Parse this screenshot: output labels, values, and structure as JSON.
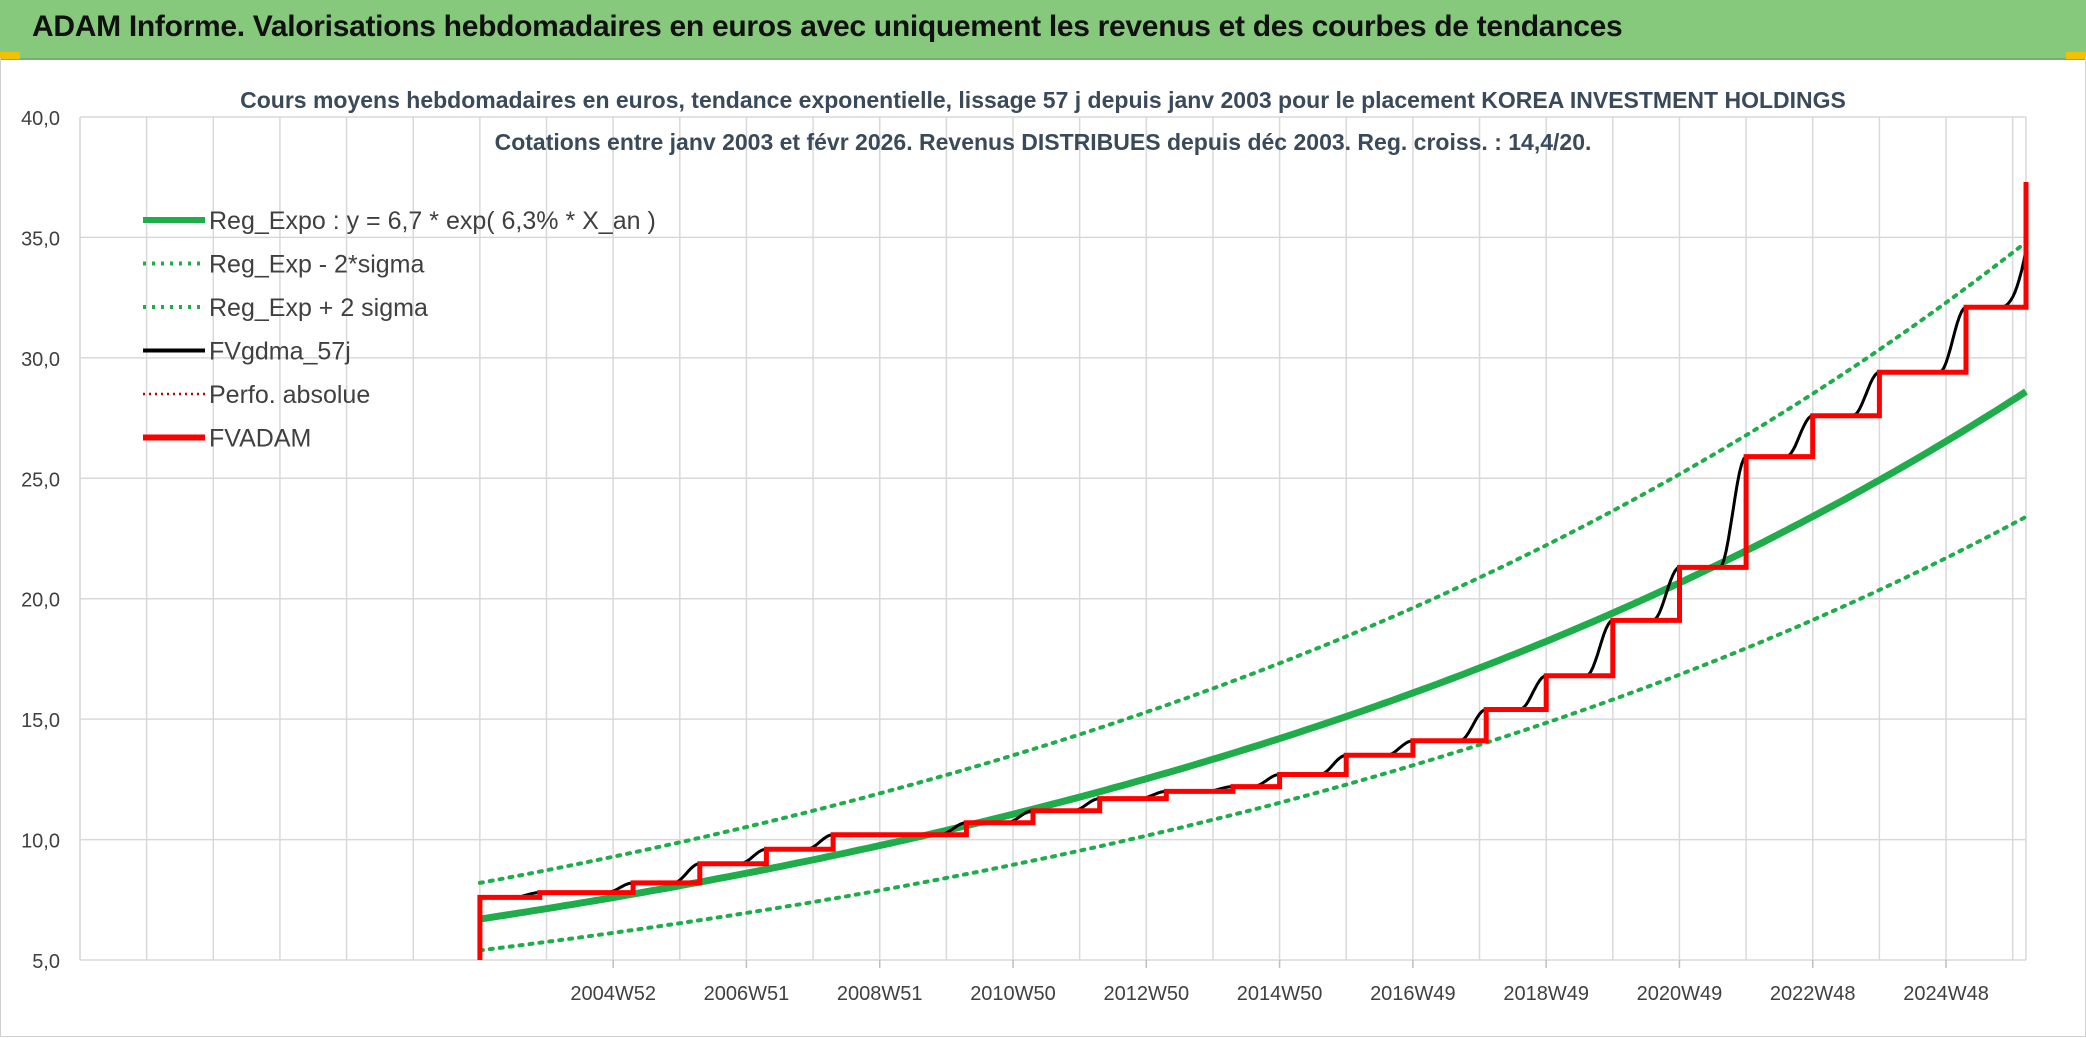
{
  "header": {
    "title": "ADAM Informe. Valorisations hebdomadaires en euros avec uniquement les revenus et des courbes de tendances"
  },
  "chart_data": {
    "type": "line",
    "title_line1": "Cours moyens hebdomadaires en euros, tendance exponentielle, lissage 57 j depuis janv 2003 pour le placement KOREA INVESTMENT HOLDINGS",
    "title_line2": "Cotations entre janv 2003 et févr 2026. Revenus DISTRIBUES depuis déc 2003. Reg. croiss. : 14,4/20.",
    "xlabel": "",
    "ylabel": "",
    "ylim": [
      5,
      40
    ],
    "y_ticks": [
      "5,0",
      "10,0",
      "15,0",
      "20,0",
      "25,0",
      "30,0",
      "35,0",
      "40,0"
    ],
    "x_tick_labels": [
      "2004W52",
      "2006W51",
      "2008W51",
      "2010W50",
      "2012W50",
      "2014W50",
      "2016W49",
      "2018W49",
      "2020W49",
      "2022W48",
      "2024W48"
    ],
    "x_tick_years": [
      2005,
      2007,
      2009,
      2011,
      2013,
      2015,
      2017,
      2019,
      2021,
      2023,
      2025
    ],
    "xlim_years": [
      1997.0,
      2026.2
    ],
    "grid": true,
    "legend_position": "top-left",
    "legend": [
      {
        "name": "Reg_Expo : y = 6,7 * exp( 6,3% *  X_an )",
        "color": "#1fad4b",
        "style": "solid-thick"
      },
      {
        "name": "Reg_Exp - 2*sigma",
        "color": "#1fad4b",
        "style": "dotted"
      },
      {
        "name": "Reg_Exp + 2 sigma",
        "color": "#1fad4b",
        "style": "dotted"
      },
      {
        "name": "FVgdma_57j",
        "color": "#000000",
        "style": "solid"
      },
      {
        "name": "Perfo. absolue",
        "color": "#c00000",
        "style": "dotted"
      },
      {
        "name": "FVADAM",
        "color": "#ff0000",
        "style": "solid-thick"
      }
    ],
    "regression": {
      "x": [
        2003.0,
        2026.2
      ],
      "center": [
        6.7,
        28.6
      ],
      "lower": [
        5.4,
        23.4
      ],
      "upper": [
        8.2,
        34.8
      ]
    },
    "fvadam_steps": {
      "start": {
        "x": 2003.0,
        "y": 5.0
      },
      "x_end": 2026.2,
      "final_jump_y": 37.3,
      "steps": [
        {
          "x": 2003.0,
          "y": 7.6
        },
        {
          "x": 2003.9,
          "y": 7.8
        },
        {
          "x": 2005.3,
          "y": 8.2
        },
        {
          "x": 2006.3,
          "y": 9.0
        },
        {
          "x": 2007.3,
          "y": 9.6
        },
        {
          "x": 2008.3,
          "y": 10.2
        },
        {
          "x": 2010.3,
          "y": 10.7
        },
        {
          "x": 2011.3,
          "y": 11.2
        },
        {
          "x": 2012.3,
          "y": 11.7
        },
        {
          "x": 2013.3,
          "y": 12.0
        },
        {
          "x": 2014.3,
          "y": 12.2
        },
        {
          "x": 2015.0,
          "y": 12.7
        },
        {
          "x": 2016.0,
          "y": 13.5
        },
        {
          "x": 2017.0,
          "y": 14.1
        },
        {
          "x": 2018.1,
          "y": 15.4
        },
        {
          "x": 2019.0,
          "y": 16.8
        },
        {
          "x": 2020.0,
          "y": 19.1
        },
        {
          "x": 2021.0,
          "y": 21.3
        },
        {
          "x": 2022.0,
          "y": 25.9
        },
        {
          "x": 2023.0,
          "y": 27.6
        },
        {
          "x": 2024.0,
          "y": 29.4
        },
        {
          "x": 2025.3,
          "y": 32.1
        }
      ]
    }
  }
}
